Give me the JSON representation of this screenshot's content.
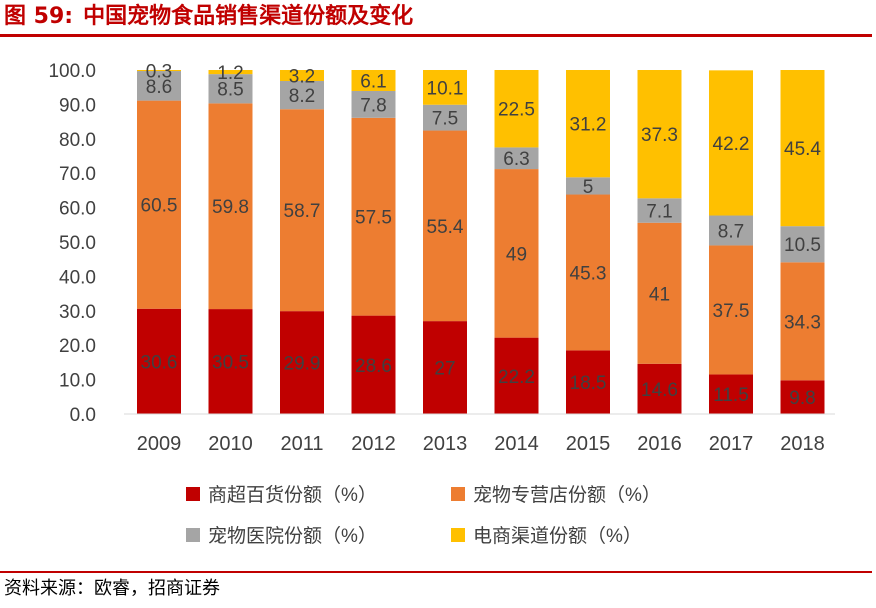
{
  "header": {
    "figure_label": "图 59:",
    "title": "中国宠物食品销售渠道份额及变化"
  },
  "footer": {
    "source": "资料来源：欧睿，招商证券"
  },
  "colors": {
    "accent": "#c00000",
    "series": [
      "#c00000",
      "#ed7d31",
      "#a5a5a5",
      "#ffc000"
    ]
  },
  "chart_data": {
    "type": "bar",
    "stacked": true,
    "categories": [
      "2009",
      "2010",
      "2011",
      "2012",
      "2013",
      "2014",
      "2015",
      "2016",
      "2017",
      "2018"
    ],
    "series": [
      {
        "name": "商超百货份额（%）",
        "values": [
          30.6,
          30.5,
          29.9,
          28.6,
          27,
          22.2,
          18.5,
          14.6,
          11.5,
          9.8
        ]
      },
      {
        "name": "宠物专营店份额（%）",
        "values": [
          60.5,
          59.8,
          58.7,
          57.5,
          55.4,
          49,
          45.3,
          41,
          37.5,
          34.3
        ]
      },
      {
        "name": "宠物医院份额（%）",
        "values": [
          8.6,
          8.5,
          8.2,
          7.8,
          7.5,
          6.3,
          5,
          7.1,
          8.7,
          10.5
        ]
      },
      {
        "name": "电商渠道份额（%）",
        "values": [
          0.3,
          1.2,
          3.2,
          6.1,
          10.1,
          22.5,
          31.2,
          37.3,
          42.2,
          45.4
        ]
      }
    ],
    "y_ticks": [
      "0.0",
      "10.0",
      "20.0",
      "30.0",
      "40.0",
      "50.0",
      "60.0",
      "70.0",
      "80.0",
      "90.0",
      "100.0"
    ],
    "ylim": [
      0,
      100
    ],
    "legend_position": "bottom",
    "grid": false
  }
}
